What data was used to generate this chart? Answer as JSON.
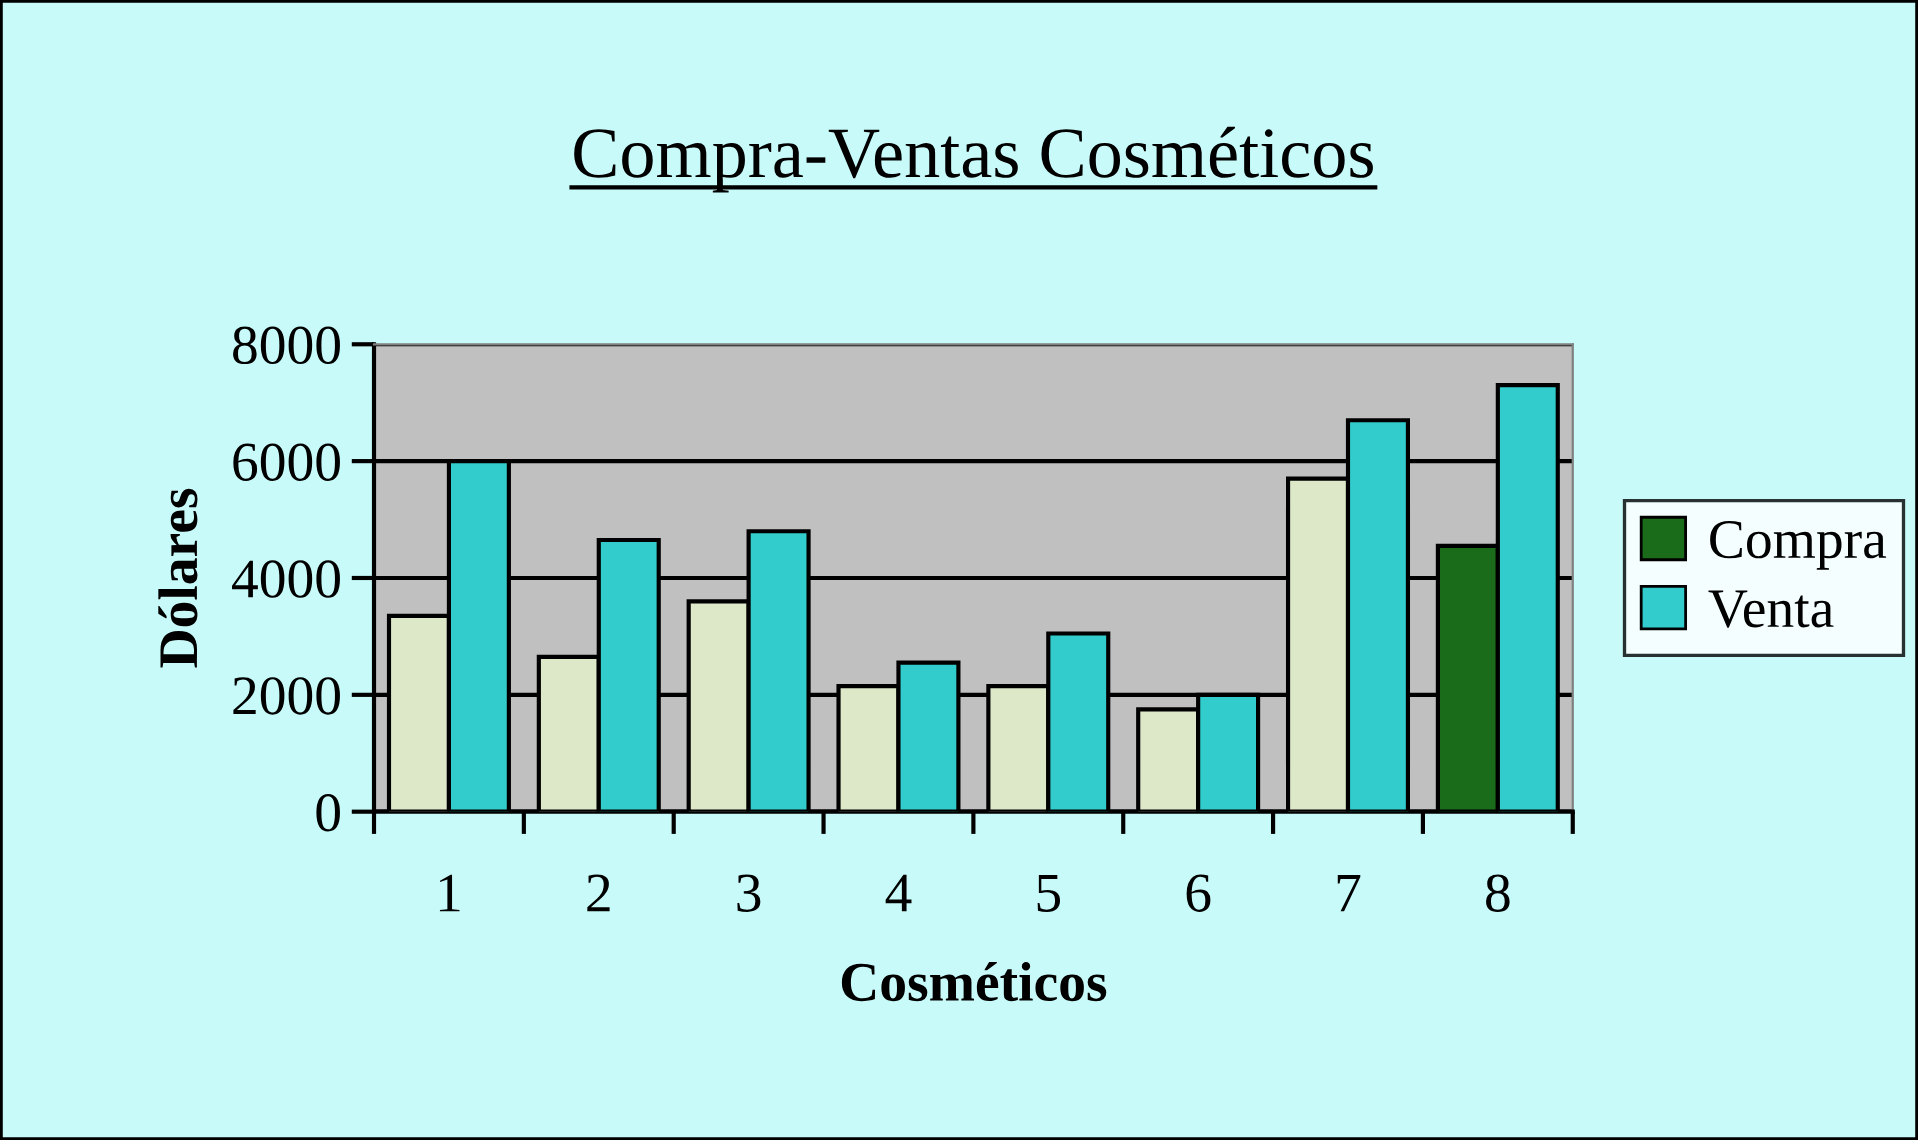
{
  "chart_data": {
    "type": "bar",
    "title": "Compra-Ventas Cosméticos",
    "xlabel": "Cosméticos",
    "ylabel": "Dólares",
    "categories": [
      "1",
      "2",
      "3",
      "4",
      "5",
      "6",
      "7",
      "8"
    ],
    "series": [
      {
        "name": "Compra",
        "color": "#1a6b1a",
        "colors": [
          "#dde8c8",
          "#dde8c8",
          "#dde8c8",
          "#dde8c8",
          "#dde8c8",
          "#dde8c8",
          "#dde8c8",
          "#1a6b1a"
        ],
        "values": [
          3350,
          2650,
          3600,
          2150,
          2150,
          1750,
          5700,
          4550
        ]
      },
      {
        "name": "Venta",
        "color": "#33cccc",
        "values": [
          6000,
          4650,
          4800,
          2550,
          3050,
          2000,
          6700,
          7300
        ]
      }
    ],
    "ylim": [
      0,
      8000
    ],
    "yticks": [
      0,
      2000,
      4000,
      6000,
      8000
    ],
    "grid": "y",
    "legend": "right"
  }
}
